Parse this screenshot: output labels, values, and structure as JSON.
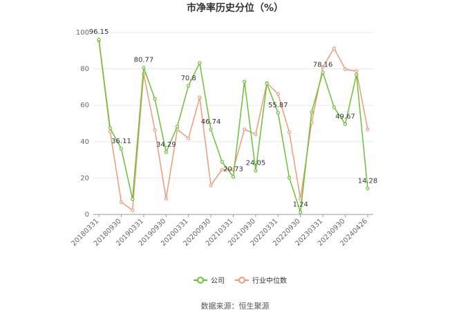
{
  "chart_data": {
    "type": "line",
    "title": "市净率历史分位（%）",
    "categories": [
      "20180331",
      null,
      "20180930",
      null,
      "20190331",
      null,
      "20190930",
      null,
      "20200331",
      null,
      "20200930",
      null,
      "20210331",
      null,
      "20210930",
      null,
      "20220331",
      null,
      "20220930",
      null,
      "20230331",
      null,
      "20230930",
      null,
      "20240426"
    ],
    "series": [
      {
        "name": "公司",
        "color": "#66c431",
        "values": [
          96.15,
          47.5,
          36.11,
          8.4,
          80.77,
          63.5,
          34.29,
          48.3,
          70.8,
          83.3,
          46.74,
          28.9,
          20.73,
          73.0,
          24.05,
          71.9,
          55.87,
          20.2,
          1.24,
          56.3,
          78.16,
          58.9,
          49.67,
          76.8,
          14.28
        ]
      },
      {
        "name": "行业中位数",
        "color": "#f29a76",
        "values": [
          95.5,
          45.6,
          6.8,
          2.3,
          77.2,
          46.4,
          8.7,
          46.8,
          41.8,
          64.3,
          16.0,
          24.7,
          24.7,
          46.8,
          44.1,
          72.2,
          66.2,
          45.2,
          8.7,
          50.6,
          81.0,
          91.3,
          79.8,
          78.7,
          46.8
        ]
      }
    ],
    "data_label_series": 0,
    "data_label_step": 2,
    "ylim": [
      0,
      100
    ],
    "yticks": [
      0,
      20,
      40,
      60,
      80,
      100
    ],
    "grid": true,
    "legend": "bottom",
    "source": "数据来源：恒生聚源"
  }
}
